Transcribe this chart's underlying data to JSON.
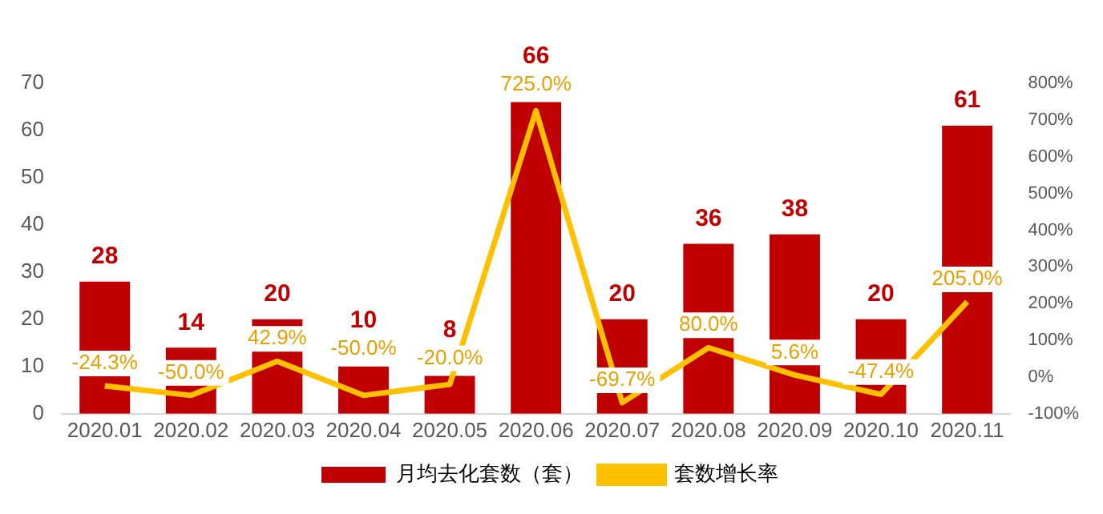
{
  "chart_data": {
    "type": "bar",
    "categories": [
      "2020.01",
      "2020.02",
      "2020.03",
      "2020.04",
      "2020.05",
      "2020.06",
      "2020.07",
      "2020.08",
      "2020.09",
      "2020.10",
      "2020.11"
    ],
    "series": [
      {
        "name": "月均去化套数（套）",
        "color": "#c00000",
        "values": [
          28,
          14,
          20,
          10,
          8,
          66,
          20,
          36,
          38,
          20,
          61
        ],
        "data_labels": true
      },
      {
        "name": "套数增长率",
        "type": "line",
        "axis": "y2",
        "color": "#ffc000",
        "values": [
          -24.3,
          -50.0,
          42.9,
          -50.0,
          -20.0,
          725.0,
          -69.7,
          80.0,
          5.6,
          -47.4,
          205.0
        ],
        "value_labels": [
          "-24.3%",
          "-50.0%",
          "42.9%",
          "-50.0%",
          "-20.0%",
          "725.0%",
          "-69.7%",
          "80.0%",
          "5.6%",
          "-47.4%",
          "205.0%"
        ]
      }
    ],
    "ylim": [
      0,
      70
    ],
    "yticks": [
      0,
      10,
      20,
      30,
      40,
      50,
      60,
      70
    ],
    "y2lim": [
      -100,
      800
    ],
    "y2ticks": [
      {
        "value": -100,
        "label": "-100%"
      },
      {
        "value": 0,
        "label": "0%"
      },
      {
        "value": 100,
        "label": "100%"
      },
      {
        "value": 200,
        "label": "200%"
      },
      {
        "value": 300,
        "label": "300%"
      },
      {
        "value": 400,
        "label": "400%"
      },
      {
        "value": 500,
        "label": "500%"
      },
      {
        "value": 600,
        "label": "600%"
      },
      {
        "value": 700,
        "label": "700%"
      },
      {
        "value": 800,
        "label": "800%"
      }
    ],
    "grid": false,
    "legend": "bottom",
    "marker": "none"
  }
}
